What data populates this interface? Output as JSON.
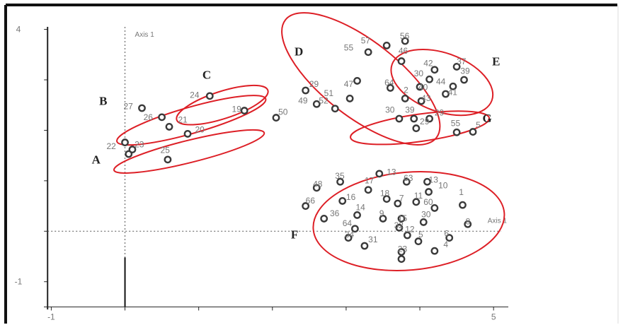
{
  "chart_data": {
    "type": "scatter",
    "title": "",
    "xlabel": "Axis 1",
    "ylabel": "Axis 1",
    "xlim": [
      -1.1,
      5.2
    ],
    "ylim": [
      -1.55,
      4.05
    ],
    "x_tick_labels": [
      {
        "value": -1,
        "label": "-1"
      },
      {
        "value": 5,
        "label": "5"
      }
    ],
    "y_tick_labels": [
      {
        "value": 4,
        "label": "4"
      },
      {
        "value": -1,
        "label": "-1"
      }
    ],
    "grid": false,
    "colors": {
      "ellipse": "#dd1f26",
      "marker": "#3a3a3a",
      "axis": "#222222",
      "label": "#777777"
    },
    "groups": [
      {
        "name": "A",
        "cx": 0.87,
        "cy": 1.58,
        "rx": 1.05,
        "ry": 0.22,
        "angle": 14,
        "label": {
          "x": -0.45,
          "y": 1.34
        },
        "points": [
          {
            "id": "",
            "x": 0.0,
            "y": 1.76,
            "lx": 0,
            "ly": 0
          },
          {
            "id": "22",
            "x": 0.05,
            "y": 1.53,
            "lx": -0.25,
            "ly": 1.63
          },
          {
            "id": "23",
            "x": 0.1,
            "y": 1.62,
            "lx": 0.13,
            "ly": 1.66
          },
          {
            "id": "25",
            "x": 0.58,
            "y": 1.42,
            "lx": 0.48,
            "ly": 1.55
          }
        ]
      },
      {
        "name": "B",
        "cx": 0.9,
        "cy": 2.2,
        "rx": 1.05,
        "ry": 0.26,
        "angle": 16,
        "label": {
          "x": -0.35,
          "y": 2.5
        },
        "points": [
          {
            "id": "27",
            "x": 0.23,
            "y": 2.44,
            "lx": -0.02,
            "ly": 2.42
          },
          {
            "id": "26",
            "x": 0.5,
            "y": 2.26,
            "lx": 0.25,
            "ly": 2.2
          },
          {
            "id": "21",
            "x": 0.6,
            "y": 2.07,
            "lx": 0.72,
            "ly": 2.15
          },
          {
            "id": "20",
            "x": 0.85,
            "y": 1.93,
            "lx": 0.95,
            "ly": 1.96
          }
        ]
      },
      {
        "name": "C",
        "cx": 1.32,
        "cy": 2.5,
        "rx": 0.65,
        "ry": 0.27,
        "angle": 18,
        "label": {
          "x": 1.05,
          "y": 3.02
        },
        "points": [
          {
            "id": "24",
            "x": 1.15,
            "y": 2.68,
            "lx": 0.88,
            "ly": 2.64
          },
          {
            "id": "19",
            "x": 1.62,
            "y": 2.39,
            "lx": 1.45,
            "ly": 2.36
          }
        ]
      },
      {
        "name": "D",
        "cx": 3.2,
        "cy": 3.02,
        "rx": 1.3,
        "ry": 0.75,
        "angle": -38,
        "label": {
          "x": 2.3,
          "y": 3.48
        },
        "points": [
          {
            "id": "56",
            "x": 3.8,
            "y": 3.77,
            "lx": 3.73,
            "ly": 3.81
          },
          {
            "id": "57",
            "x": 3.55,
            "y": 3.68,
            "lx": 3.2,
            "ly": 3.72
          },
          {
            "id": "55",
            "x": 3.3,
            "y": 3.55,
            "lx": 2.97,
            "ly": 3.58
          },
          {
            "id": "46",
            "x": 3.75,
            "y": 3.37,
            "lx": 3.71,
            "ly": 3.52
          },
          {
            "id": "47",
            "x": 3.15,
            "y": 2.98,
            "lx": 2.97,
            "ly": 2.86
          },
          {
            "id": "64",
            "x": 3.6,
            "y": 2.84,
            "lx": 3.52,
            "ly": 2.89
          },
          {
            "id": "29",
            "x": 2.45,
            "y": 2.79,
            "lx": 2.5,
            "ly": 2.86
          },
          {
            "id": "51",
            "x": 3.05,
            "y": 2.63,
            "lx": 2.7,
            "ly": 2.68
          },
          {
            "id": "49",
            "x": 2.6,
            "y": 2.52,
            "lx": 2.35,
            "ly": 2.53
          },
          {
            "id": "52",
            "x": 2.85,
            "y": 2.43,
            "lx": 2.63,
            "ly": 2.53
          },
          {
            "id": "50",
            "x": 2.05,
            "y": 2.25,
            "lx": 2.08,
            "ly": 2.31
          }
        ]
      },
      {
        "name": "E",
        "cx": 4.3,
        "cy": 2.95,
        "rx": 0.72,
        "ry": 0.58,
        "angle": -20,
        "label": {
          "x": 4.98,
          "y": 3.29
        },
        "points": [
          {
            "id": "42",
            "x": 4.2,
            "y": 3.2,
            "lx": 4.05,
            "ly": 3.27
          },
          {
            "id": "37",
            "x": 4.5,
            "y": 3.26,
            "lx": 4.5,
            "ly": 3.31
          },
          {
            "id": "39",
            "x": 4.6,
            "y": 3.0,
            "lx": 4.55,
            "ly": 3.12
          },
          {
            "id": "30",
            "x": 4.13,
            "y": 3.01,
            "lx": 3.92,
            "ly": 3.07
          },
          {
            "id": "44",
            "x": 4.45,
            "y": 2.87,
            "lx": 4.22,
            "ly": 2.91
          },
          {
            "id": "40",
            "x": 4.0,
            "y": 2.86,
            "lx": 3.98,
            "ly": 2.8
          },
          {
            "id": "2",
            "x": 3.8,
            "y": 2.63,
            "lx": 3.78,
            "ly": 2.74
          },
          {
            "id": "43",
            "x": 4.02,
            "y": 2.58,
            "lx": 4.02,
            "ly": 2.58
          },
          {
            "id": "41",
            "x": 4.35,
            "y": 2.72,
            "lx": 4.38,
            "ly": 2.7
          }
        ]
      },
      {
        "name": "G",
        "cx": 4.0,
        "cy": 2.05,
        "rx": 0.95,
        "ry": 0.27,
        "angle": 8,
        "label": {
          "x": 4.85,
          "y": 2.16
        },
        "points": [
          {
            "id": "30",
            "x": 3.72,
            "y": 2.23,
            "lx": 3.53,
            "ly": 2.35
          },
          {
            "id": "39",
            "x": 3.92,
            "y": 2.23,
            "lx": 3.8,
            "ly": 2.35
          },
          {
            "id": "29",
            "x": 4.13,
            "y": 2.23,
            "lx": 4.2,
            "ly": 2.29
          },
          {
            "id": "29",
            "x": 3.95,
            "y": 2.04,
            "lx": 4.0,
            "ly": 2.12
          },
          {
            "id": "55",
            "x": 4.5,
            "y": 1.96,
            "lx": 4.42,
            "ly": 2.08
          },
          {
            "id": "5",
            "x": 4.72,
            "y": 1.97,
            "lx": 4.76,
            "ly": 2.05
          }
        ]
      },
      {
        "name": "F",
        "cx": 3.85,
        "cy": 0.2,
        "rx": 1.3,
        "ry": 0.97,
        "angle": 5,
        "label": {
          "x": 2.25,
          "y": -0.14
        },
        "points": [
          {
            "id": "13",
            "x": 3.45,
            "y": 1.14,
            "lx": 3.55,
            "ly": 1.12
          },
          {
            "id": "63",
            "x": 3.82,
            "y": 0.98,
            "lx": 3.78,
            "ly": 1.0
          },
          {
            "id": "13",
            "x": 4.1,
            "y": 0.98,
            "lx": 4.12,
            "ly": 0.96
          },
          {
            "id": "35",
            "x": 2.92,
            "y": 0.98,
            "lx": 2.85,
            "ly": 1.04
          },
          {
            "id": "17",
            "x": 3.3,
            "y": 0.82,
            "lx": 3.25,
            "ly": 0.95
          },
          {
            "id": "10",
            "x": 4.12,
            "y": 0.78,
            "lx": 4.25,
            "ly": 0.85
          },
          {
            "id": "48",
            "x": 2.6,
            "y": 0.86,
            "lx": 2.55,
            "ly": 0.88
          },
          {
            "id": "18",
            "x": 3.55,
            "y": 0.64,
            "lx": 3.46,
            "ly": 0.7
          },
          {
            "id": "16",
            "x": 2.95,
            "y": 0.6,
            "lx": 3.0,
            "ly": 0.62
          },
          {
            "id": "7",
            "x": 3.7,
            "y": 0.55,
            "lx": 3.72,
            "ly": 0.6
          },
          {
            "id": "11",
            "x": 3.95,
            "y": 0.58,
            "lx": 3.92,
            "ly": 0.65
          },
          {
            "id": "60",
            "x": 4.2,
            "y": 0.46,
            "lx": 4.05,
            "ly": 0.52
          },
          {
            "id": "1",
            "x": 4.58,
            "y": 0.52,
            "lx": 4.53,
            "ly": 0.72
          },
          {
            "id": "66",
            "x": 2.45,
            "y": 0.5,
            "lx": 2.45,
            "ly": 0.55
          },
          {
            "id": "14",
            "x": 3.15,
            "y": 0.32,
            "lx": 3.13,
            "ly": 0.42
          },
          {
            "id": "9",
            "x": 3.5,
            "y": 0.25,
            "lx": 3.45,
            "ly": 0.3
          },
          {
            "id": "15",
            "x": 3.75,
            "y": 0.25,
            "lx": 3.7,
            "ly": 0.2
          },
          {
            "id": "30",
            "x": 4.05,
            "y": 0.18,
            "lx": 4.02,
            "ly": 0.28
          },
          {
            "id": "8",
            "x": 4.65,
            "y": 0.14,
            "lx": 4.62,
            "ly": 0.14
          },
          {
            "id": "36",
            "x": 2.7,
            "y": 0.25,
            "lx": 2.78,
            "ly": 0.3
          },
          {
            "id": "64",
            "x": 3.12,
            "y": 0.05,
            "lx": 2.95,
            "ly": 0.1
          },
          {
            "id": "32",
            "x": 3.72,
            "y": 0.07,
            "lx": 3.65,
            "ly": 0.06
          },
          {
            "id": "12",
            "x": 3.83,
            "y": -0.08,
            "lx": 3.8,
            "ly": -0.02
          },
          {
            "id": "34",
            "x": 3.03,
            "y": -0.13,
            "lx": 2.98,
            "ly": -0.12
          },
          {
            "id": "5",
            "x": 3.98,
            "y": -0.2,
            "lx": 3.98,
            "ly": -0.12
          },
          {
            "id": "6",
            "x": 4.4,
            "y": -0.13,
            "lx": 4.33,
            "ly": -0.1
          },
          {
            "id": "31",
            "x": 3.25,
            "y": -0.29,
            "lx": 3.3,
            "ly": -0.22
          },
          {
            "id": "4",
            "x": 4.2,
            "y": -0.39,
            "lx": 4.32,
            "ly": -0.32
          },
          {
            "id": "23",
            "x": 3.75,
            "y": -0.41,
            "lx": 3.7,
            "ly": -0.41
          },
          {
            "id": "",
            "x": 3.75,
            "y": -0.55,
            "lx": 0,
            "ly": 0
          }
        ]
      }
    ]
  }
}
